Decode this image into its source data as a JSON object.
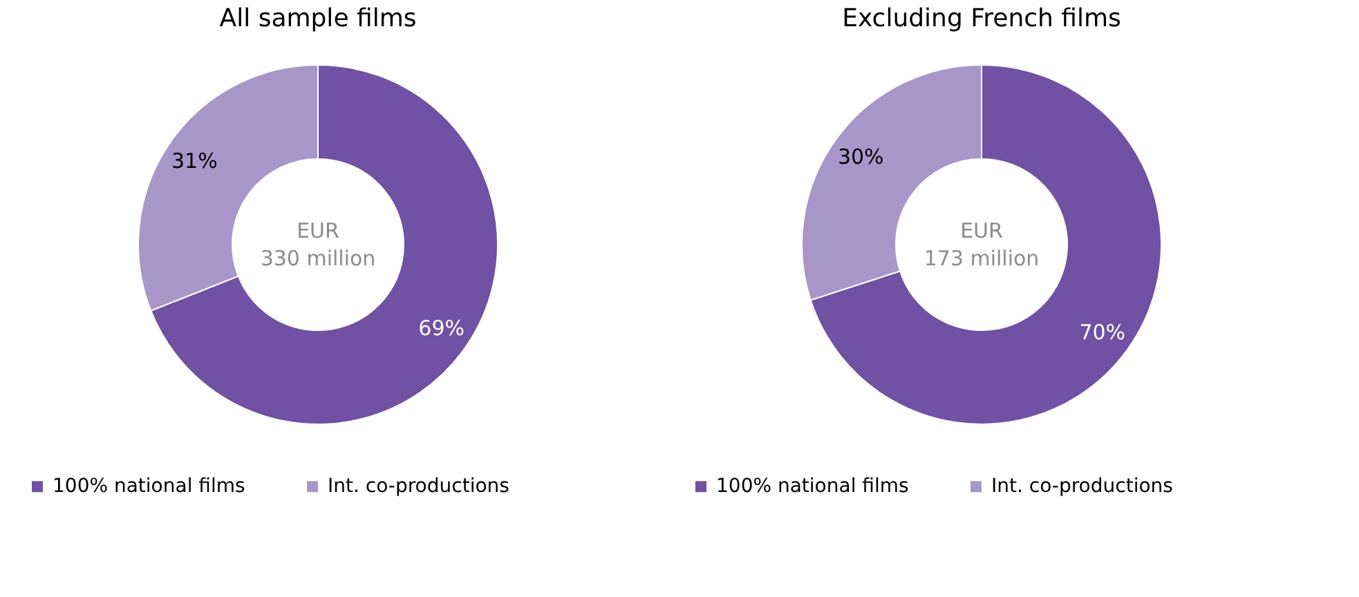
{
  "chart_data": [
    {
      "type": "donut",
      "title": "All sample films",
      "categories": [
        "100% national films",
        "Int. co-productions"
      ],
      "values": [
        69,
        31
      ],
      "colors": [
        "#7151a3",
        "#a797c9"
      ],
      "data_labels": true,
      "value_labels": [
        "69%",
        "31%"
      ],
      "annotations": [
        "EUR",
        "330 million"
      ],
      "legend": "bottom"
    },
    {
      "type": "donut",
      "title": "Excluding French films",
      "categories": [
        "100% national films",
        "Int. co-productions"
      ],
      "values": [
        70,
        30
      ],
      "colors": [
        "#7151a3",
        "#a797c9"
      ],
      "data_labels": true,
      "value_labels": [
        "70%",
        "30%"
      ],
      "annotations": [
        "EUR",
        "173 million"
      ],
      "legend": "bottom"
    }
  ]
}
